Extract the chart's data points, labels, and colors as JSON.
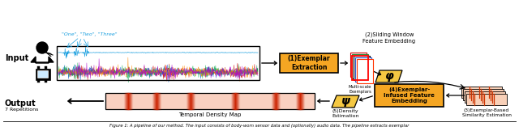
{
  "bg_color": "#ffffff",
  "input_label": "Input",
  "output_label": "Output",
  "repetitions_label": "7 Repetitions",
  "density_map_label": "Temporal Density Map",
  "box1_label": "(1)Exemplar\nExtraction",
  "box1_color": "#f5a623",
  "box2_label": "(2)Sliding Window\nFeature Embedding",
  "box3_label": "(4)Exemplar-\nInfused Feature\nEmbedding",
  "box3_color": "#f5a623",
  "box4_label": "(3)Exemplar-Based\nSimilarity Estimation",
  "step5_label": "(5)Density\nEstimation",
  "exemplars_label": "Multi-scale\nExemplars",
  "phi_color": "#f5c842",
  "speech_color": "#1a9fdf",
  "speech_text": "\"One\", \"Two\", \"Three\"",
  "caption_text": "Figure 1: A pipeline of our method. The input consists of body-worn sensor data and (optionally) audio data. The pipeline extracts exemplar",
  "density_bg_color": "#f9d0c0",
  "red_bar_color": "#cc2200"
}
